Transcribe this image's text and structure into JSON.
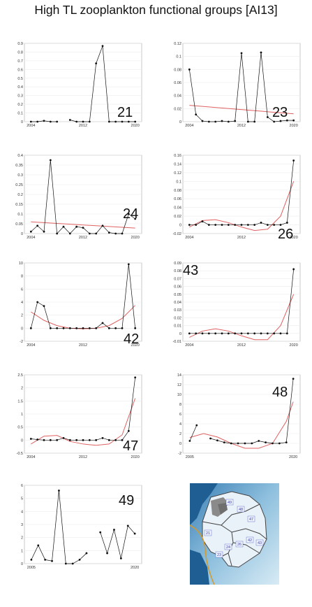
{
  "title": "High TL zooplankton functional groups [AI13]",
  "colors": {
    "data": "#111111",
    "trend": "#e06060",
    "axis": "#bdbdbd",
    "grid": "#ececec"
  },
  "chart_data": [
    {
      "type": "line",
      "label": "21",
      "xlim": [
        2003,
        2021
      ],
      "ylim": [
        0,
        0.9
      ],
      "xticks": [
        "2004",
        "2012",
        "2020"
      ],
      "yticks": [
        "0",
        "0.1",
        "0.2",
        "0.3",
        "0.4",
        "0.5",
        "0.6",
        "0.7",
        "0.8",
        "0.9"
      ],
      "series": [
        {
          "x": [
            2004,
            2005,
            2006,
            2007,
            2008,
            2009,
            2010,
            2011,
            2012,
            2013,
            2014,
            2015,
            2016,
            2017,
            2018,
            2019,
            2020
          ],
          "y": [
            0,
            0,
            0.01,
            0,
            0,
            null,
            0.02,
            0,
            0,
            0,
            0.67,
            0.87,
            0,
            0,
            0,
            0,
            0
          ]
        }
      ],
      "trend": null
    },
    {
      "type": "line",
      "label": "23",
      "xlim": [
        2003,
        2021
      ],
      "ylim": [
        0,
        0.12
      ],
      "xticks": [
        "2004",
        "2012",
        "2020"
      ],
      "yticks": [
        "0",
        "0.02",
        "0.04",
        "0.06",
        "0.08",
        "0.1",
        "0.12"
      ],
      "series": [
        {
          "x": [
            2004,
            2005,
            2006,
            2007,
            2008,
            2009,
            2010,
            2011,
            2012,
            2013,
            2014,
            2015,
            2016,
            2017,
            2018,
            2019,
            2020
          ],
          "y": [
            0.08,
            0.011,
            0.001,
            0,
            0,
            0.001,
            0,
            0.001,
            0.105,
            0,
            0,
            0.106,
            0.007,
            0,
            0.001,
            0.002,
            0.002
          ]
        }
      ],
      "trend": {
        "x": [
          2004,
          2020
        ],
        "y": [
          0.025,
          0.012
        ]
      }
    },
    {
      "type": "line",
      "label": "24",
      "xlim": [
        2003,
        2021
      ],
      "ylim": [
        0,
        0.4
      ],
      "xticks": [
        "2004",
        "2012",
        "2020"
      ],
      "yticks": [
        "0",
        "0.05",
        "0.1",
        "0.15",
        "0.2",
        "0.25",
        "0.3",
        "0.35",
        "0.4"
      ],
      "series": [
        {
          "x": [
            2004,
            2005,
            2006,
            2007,
            2008,
            2009,
            2010,
            2011,
            2012,
            2013,
            2014,
            2015,
            2016,
            2017,
            2018,
            2019,
            2020
          ],
          "y": [
            0.01,
            0.04,
            0.01,
            0.375,
            0,
            0.035,
            0,
            0.035,
            0.03,
            0,
            0,
            0.04,
            0.005,
            0,
            0,
            0.1,
            0.075
          ]
        }
      ],
      "trend": {
        "x": [
          2004,
          2020
        ],
        "y": [
          0.06,
          0.028
        ]
      }
    },
    {
      "type": "line",
      "label": "26",
      "xlim": [
        2003,
        2021
      ],
      "ylim": [
        -0.02,
        0.16
      ],
      "xticks": [
        "2004",
        "2012",
        "2020"
      ],
      "yticks": [
        "-0.02",
        "0",
        "0.02",
        "0.04",
        "0.06",
        "0.08",
        "0.1",
        "0.12",
        "0.14",
        "0.16"
      ],
      "series": [
        {
          "x": [
            2004,
            2005,
            2006,
            2007,
            2008,
            2009,
            2010,
            2011,
            2012,
            2013,
            2014,
            2015,
            2016,
            2017,
            2018,
            2019,
            2020
          ],
          "y": [
            0,
            0,
            0.008,
            0,
            0,
            0,
            0,
            0,
            0,
            0,
            0,
            0.005,
            0,
            0,
            0,
            0.005,
            0.148
          ]
        }
      ],
      "trend": {
        "x": [
          2004,
          2006,
          2008,
          2010,
          2012,
          2014,
          2016,
          2018,
          2020
        ],
        "y": [
          -0.005,
          0.01,
          0.012,
          0.005,
          -0.005,
          -0.013,
          -0.01,
          0.02,
          0.1
        ]
      }
    },
    {
      "type": "line",
      "label": "42",
      "xlim": [
        2003,
        2021
      ],
      "ylim": [
        -2,
        10
      ],
      "xticks": [
        "2004",
        "2012",
        "2020"
      ],
      "yticks": [
        "-2",
        "0",
        "2",
        "4",
        "6",
        "8",
        "10"
      ],
      "series": [
        {
          "x": [
            2004,
            2005,
            2006,
            2007,
            2008,
            2009,
            2010,
            2011,
            2012,
            2013,
            2014,
            2015,
            2016,
            2017,
            2018,
            2019,
            2020
          ],
          "y": [
            0,
            4,
            3.4,
            0,
            0,
            0,
            0,
            0,
            0,
            0,
            0,
            0.8,
            0,
            0,
            0,
            9.8,
            0
          ]
        }
      ],
      "trend": {
        "x": [
          2004,
          2006,
          2008,
          2010,
          2012,
          2014,
          2016,
          2018,
          2020
        ],
        "y": [
          2.5,
          1.2,
          0.4,
          0,
          -0.1,
          0,
          0.4,
          1.5,
          3.5
        ]
      }
    },
    {
      "type": "line",
      "label": "43",
      "xlim": [
        2003,
        2021
      ],
      "ylim": [
        -0.01,
        0.09
      ],
      "xticks": [
        "2004",
        "2012",
        "2020"
      ],
      "yticks": [
        "-0.01",
        "0",
        "0.01",
        "0.02",
        "0.03",
        "0.04",
        "0.05",
        "0.06",
        "0.07",
        "0.08",
        "0.09"
      ],
      "series": [
        {
          "x": [
            2004,
            2005,
            2006,
            2007,
            2008,
            2009,
            2010,
            2011,
            2012,
            2013,
            2014,
            2015,
            2016,
            2017,
            2018,
            2019,
            2020
          ],
          "y": [
            0,
            0,
            0,
            0,
            0,
            0,
            0,
            0,
            0,
            0,
            0,
            0,
            0,
            0,
            0,
            0,
            0.082
          ]
        }
      ],
      "trend": {
        "x": [
          2004,
          2006,
          2008,
          2010,
          2012,
          2014,
          2016,
          2018,
          2020
        ],
        "y": [
          -0.005,
          0.003,
          0.006,
          0.003,
          -0.003,
          -0.008,
          -0.008,
          0.01,
          0.05
        ]
      }
    },
    {
      "type": "line",
      "label": "47",
      "xlim": [
        2003,
        2021
      ],
      "ylim": [
        -0.5,
        2.5
      ],
      "xticks": [
        "2004",
        "2012",
        "2020"
      ],
      "yticks": [
        "-0.5",
        "0",
        "0.5",
        "1",
        "1.5",
        "2",
        "2.5"
      ],
      "series": [
        {
          "x": [
            2004,
            2005,
            2006,
            2007,
            2008,
            2009,
            2010,
            2011,
            2012,
            2013,
            2014,
            2015,
            2016,
            2017,
            2018,
            2019,
            2020
          ],
          "y": [
            0.05,
            0.02,
            0,
            0,
            0,
            0.08,
            0,
            0,
            0,
            0,
            0,
            0.08,
            0,
            0,
            0,
            0.35,
            2.4
          ]
        }
      ],
      "trend": {
        "x": [
          2004,
          2006,
          2008,
          2010,
          2012,
          2014,
          2016,
          2018,
          2020
        ],
        "y": [
          -0.15,
          0.15,
          0.18,
          -0.05,
          -0.15,
          -0.2,
          -0.15,
          0.2,
          1.6
        ]
      }
    },
    {
      "type": "line",
      "label": "48",
      "xlim": [
        2004,
        2021
      ],
      "ylim": [
        -2,
        14
      ],
      "xticks": [
        "2005",
        "2020"
      ],
      "yticks": [
        "-2",
        "0",
        "2",
        "4",
        "6",
        "8",
        "10",
        "12",
        "14"
      ],
      "series": [
        {
          "x": [
            2005,
            2006,
            2007,
            2008,
            2009,
            2010,
            2011,
            2012,
            2013,
            2014,
            2015,
            2016,
            2017,
            2018,
            2019,
            2020
          ],
          "y": [
            0.5,
            3.7,
            null,
            1,
            0.6,
            0.2,
            0,
            0,
            0,
            0,
            0.5,
            0.2,
            0,
            0,
            0.2,
            13.2
          ]
        }
      ],
      "trend": {
        "x": [
          2005,
          2007,
          2009,
          2011,
          2013,
          2015,
          2017,
          2019,
          2020
        ],
        "y": [
          1.2,
          2,
          1.3,
          0,
          -1,
          -1,
          0,
          4.5,
          8.5
        ]
      }
    },
    {
      "type": "line",
      "label": "49",
      "xlim": [
        2004,
        2021
      ],
      "ylim": [
        0,
        6
      ],
      "xticks": [
        "2005",
        "2020"
      ],
      "yticks": [
        "0",
        "1",
        "2",
        "3",
        "4",
        "5",
        "6"
      ],
      "series": [
        {
          "x": [
            2005,
            2006,
            2007,
            2008,
            2009,
            2010,
            2011,
            2012,
            2013,
            2014,
            2015,
            2016,
            2017,
            2018,
            2019,
            2020
          ],
          "y": [
            0.3,
            1.4,
            0.3,
            0.2,
            5.6,
            0,
            0,
            0.3,
            0.8,
            null,
            2.4,
            0.8,
            2.6,
            0.4,
            2.9,
            2.3
          ]
        }
      ],
      "trend": null
    }
  ],
  "map": {
    "regions": [
      "49",
      "48",
      "47",
      "21",
      "42",
      "43",
      "24",
      "26",
      "23"
    ]
  }
}
